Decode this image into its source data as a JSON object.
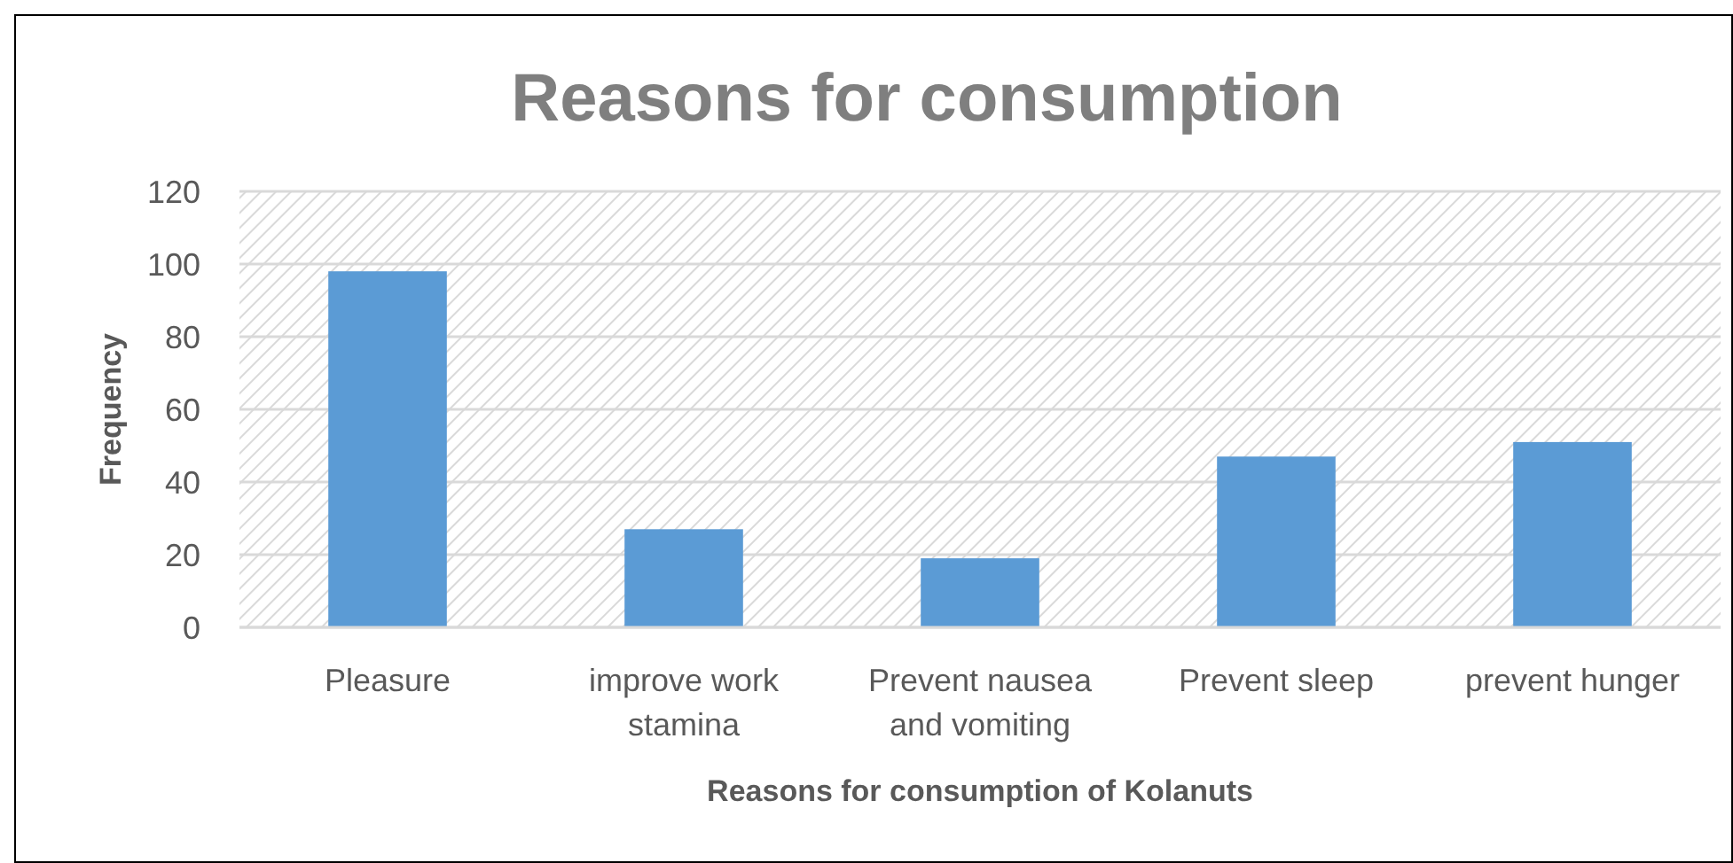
{
  "chart_data": {
    "type": "bar",
    "title": "Reasons for consumption",
    "xlabel": "Reasons for consumption of Kolanuts",
    "ylabel": "Frequency",
    "categories": [
      "Pleasure",
      "improve work stamina",
      "Prevent nausea and vomiting",
      "Prevent sleep",
      "prevent hunger"
    ],
    "values": [
      98,
      27,
      19,
      47,
      51
    ],
    "color": "#5b9bd5",
    "ylim": [
      0,
      120
    ],
    "yticks": [
      0,
      20,
      40,
      60,
      80,
      100,
      120
    ],
    "grid": "y"
  }
}
